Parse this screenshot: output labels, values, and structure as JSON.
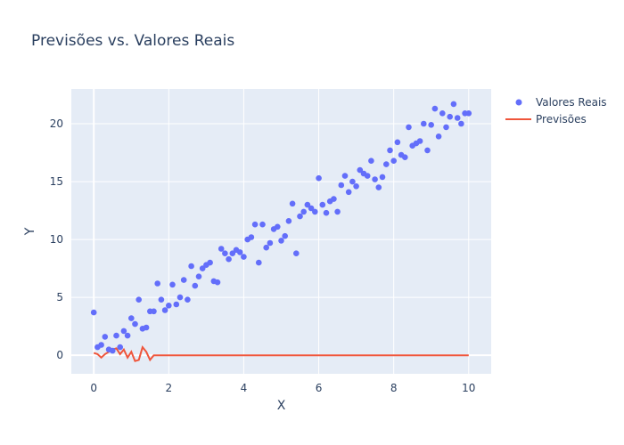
{
  "chart_data": {
    "type": "scatter",
    "title": "Previsões vs. Valores Reais",
    "xlabel": "X",
    "ylabel": "Y",
    "xlim": [
      -0.6,
      10.6
    ],
    "ylim": [
      -1.6,
      23.0
    ],
    "x_ticks": [
      0,
      2,
      4,
      6,
      8,
      10
    ],
    "y_ticks": [
      0,
      5,
      10,
      15,
      20
    ],
    "grid": true,
    "legend_position": "top-right",
    "series": [
      {
        "name": "Valores Reais",
        "type": "scatter",
        "color": "#636efa",
        "x": [
          0.0,
          0.1,
          0.2,
          0.3,
          0.4,
          0.5,
          0.6,
          0.7,
          0.8,
          0.9,
          1.0,
          1.1,
          1.2,
          1.3,
          1.4,
          1.5,
          1.6,
          1.7,
          1.8,
          1.9,
          2.0,
          2.1,
          2.2,
          2.3,
          2.4,
          2.5,
          2.6,
          2.7,
          2.8,
          2.9,
          3.0,
          3.1,
          3.2,
          3.3,
          3.4,
          3.5,
          3.6,
          3.7,
          3.8,
          3.9,
          4.0,
          4.1,
          4.2,
          4.3,
          4.4,
          4.5,
          4.6,
          4.7,
          4.8,
          4.9,
          5.0,
          5.1,
          5.2,
          5.3,
          5.4,
          5.5,
          5.6,
          5.7,
          5.8,
          5.9,
          6.0,
          6.1,
          6.2,
          6.3,
          6.4,
          6.5,
          6.6,
          6.7,
          6.8,
          6.9,
          7.0,
          7.1,
          7.2,
          7.3,
          7.4,
          7.5,
          7.6,
          7.7,
          7.8,
          7.9,
          8.0,
          8.1,
          8.2,
          8.3,
          8.4,
          8.5,
          8.6,
          8.7,
          8.8,
          8.9,
          9.0,
          9.1,
          9.2,
          9.3,
          9.4,
          9.5,
          9.6,
          9.7,
          9.8,
          9.9,
          10.0
        ],
        "y": [
          3.7,
          0.7,
          0.9,
          1.6,
          0.5,
          0.4,
          1.7,
          0.7,
          2.1,
          1.7,
          3.2,
          2.7,
          4.8,
          2.3,
          2.4,
          3.8,
          3.8,
          6.2,
          4.8,
          3.9,
          4.3,
          6.1,
          4.4,
          5.0,
          6.5,
          4.8,
          7.7,
          6.0,
          6.8,
          7.5,
          7.8,
          8.0,
          6.4,
          6.3,
          9.2,
          8.8,
          8.3,
          8.8,
          9.1,
          8.9,
          8.5,
          10.0,
          10.2,
          11.3,
          8.0,
          11.3,
          9.3,
          9.7,
          10.9,
          11.1,
          9.9,
          10.3,
          11.6,
          13.1,
          8.8,
          12.0,
          12.4,
          13.0,
          12.7,
          12.4,
          15.3,
          13.0,
          12.3,
          13.3,
          13.5,
          12.4,
          14.7,
          15.5,
          14.1,
          15.0,
          14.6,
          16.0,
          15.7,
          15.5,
          16.8,
          15.2,
          14.5,
          15.4,
          16.5,
          17.7,
          16.8,
          18.4,
          17.3,
          17.1,
          19.7,
          18.1,
          18.3,
          18.5,
          20.0,
          17.7,
          19.9,
          21.3,
          18.9,
          20.9,
          19.7,
          20.6,
          21.7,
          20.5,
          20.0,
          20.9,
          20.9
        ]
      },
      {
        "name": "Previsões",
        "type": "line",
        "color": "#ef553b",
        "x": [
          0.0,
          0.1,
          0.2,
          0.3,
          0.4,
          0.5,
          0.6,
          0.7,
          0.8,
          0.9,
          1.0,
          1.1,
          1.2,
          1.3,
          1.4,
          1.5,
          1.6,
          1.7,
          2.0,
          3.0,
          4.0,
          5.0,
          6.0,
          7.0,
          8.0,
          9.0,
          10.0
        ],
        "y": [
          0.2,
          0.1,
          -0.2,
          0.1,
          0.3,
          0.5,
          0.6,
          0.1,
          0.5,
          -0.2,
          0.3,
          -0.5,
          -0.4,
          0.7,
          0.3,
          -0.4,
          0.0,
          0.0,
          0.0,
          0.0,
          0.0,
          0.0,
          0.0,
          0.0,
          0.0,
          0.0,
          0.0
        ]
      }
    ]
  }
}
